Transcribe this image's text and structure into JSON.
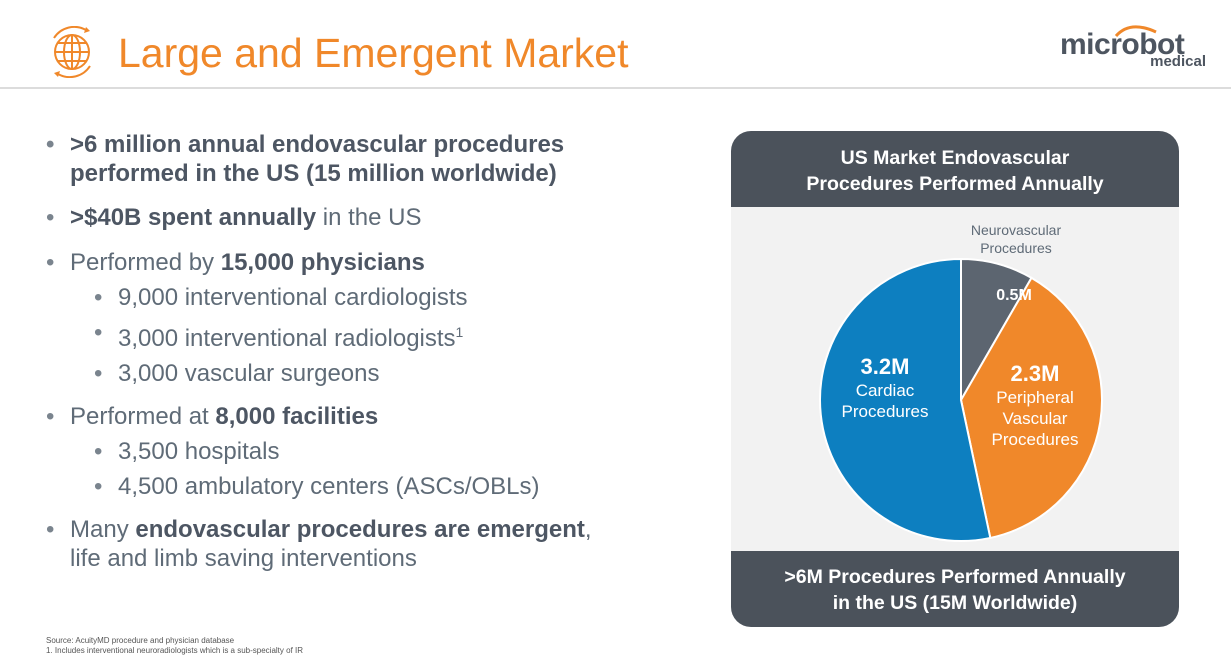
{
  "header": {
    "title": "Large and Emergent Market",
    "logo_main": "microbot",
    "logo_sub": "medical",
    "accent_color": "#f0882a",
    "icon": "globe-icon"
  },
  "bullets": [
    {
      "lead": ">6 million annual endovascular procedures performed in the US (15 million worldwide)",
      "bold": true
    },
    {
      "bold_part": ">$40B spent annually",
      "rest": " in the US"
    },
    {
      "plain": "Performed by ",
      "bold_part": "15,000 physicians",
      "sub": [
        "9,000 interventional cardiologists",
        "3,000 interventional radiologists",
        "3,000 vascular surgeons"
      ],
      "sub_superscript": "1"
    },
    {
      "plain": "Performed at ",
      "bold_part": "8,000 facilities",
      "sub": [
        "3,500 hospitals",
        "4,500 ambulatory centers (ASCs/OBLs)"
      ]
    },
    {
      "plain": "Many ",
      "bold_part": "endovascular procedures are emergent",
      "rest": ",",
      "line2": "life and limb saving interventions"
    }
  ],
  "source_note": "Source: AcuityMD procedure and physician database",
  "footnote": "1.  Includes interventional neuroradiologists which is a sub-specialty of IR",
  "panel": {
    "title_line1": "US Market Endovascular",
    "title_line2": "Procedures Performed Annually",
    "footer_line1": ">6M Procedures Performed Annually",
    "footer_line2": "in the US (15M Worldwide)"
  },
  "chart_data": {
    "type": "pie",
    "title": "US Market Endovascular Procedures Performed Annually",
    "unit": "M",
    "slices": [
      {
        "label_lines": [
          "Neurovascular",
          "Procedures"
        ],
        "value": 0.5,
        "value_label": "0.5M",
        "color": "#5c6570"
      },
      {
        "label_lines": [
          "Peripheral",
          "Vascular",
          "Procedures"
        ],
        "value": 2.3,
        "value_label": "2.3M",
        "color": "#f0882a"
      },
      {
        "label_lines": [
          "Cardiac",
          "Procedures"
        ],
        "value": 3.2,
        "value_label": "3.2M",
        "color": "#0d7fc0"
      }
    ],
    "start_angle_deg": 0,
    "direction": "clockwise"
  }
}
